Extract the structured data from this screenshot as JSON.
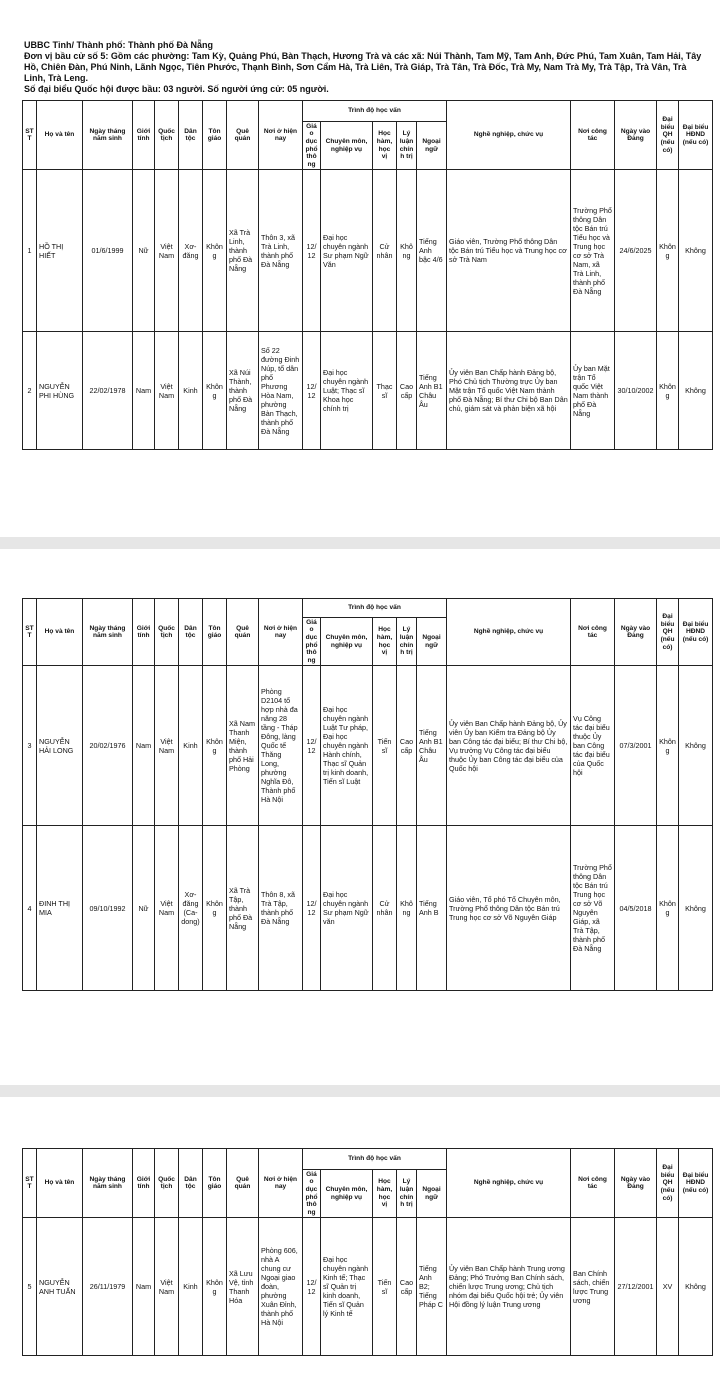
{
  "header": {
    "line1": "UBBC Tỉnh/ Thành phố: Thành phố Đà Nẵng",
    "line2": "Đơn vị bầu cử số 5: Gồm các phường: Tam Kỳ, Quảng Phú, Bàn Thạch, Hương Trà và các xã: Núi Thành, Tam Mỹ, Tam Anh, Đức Phú, Tam Xuân, Tam Hải, Tây Hồ, Chiên Đàn, Phú Ninh, Lãnh Ngọc, Tiên Phước, Thạnh Bình, Sơn Cẩm Hà, Trà Liên, Trà Giáp, Trà Tân, Trà Đốc, Trà My, Nam Trà My, Trà Tập, Trà Vân, Trà Linh, Trà Leng.",
    "line3": "Số đại biểu Quốc hội được bầu: 03 người. Số người ứng cử: 05 người."
  },
  "education_group": "Trình độ học vấn",
  "columns": [
    "STT",
    "Họ và tên",
    "Ngày tháng năm sinh",
    "Giới tính",
    "Quốc tịch",
    "Dân tộc",
    "Tôn giáo",
    "Quê quán",
    "Nơi ở hiện nay",
    "Giáo dục phổ thông",
    "Chuyên môn, nghiệp vụ",
    "Học hàm, học vị",
    "Lý luận chính trị",
    "Ngoại ngữ",
    "Nghề nghiệp, chức vụ",
    "Nơi công tác",
    "Ngày vào Đảng",
    "Đại biểu QH (nếu có)",
    "Đại biểu HĐND (nếu có)"
  ],
  "pages": [
    {
      "rows": [
        [
          "1",
          "HỒ THỊ HIẾT",
          "01/6/1999",
          "Nữ",
          "Việt Nam",
          "Xơ-đăng",
          "Không",
          "Xã Trà Linh, thành phố Đà Nẵng",
          "Thôn 3, xã Trà Linh, thành phố Đà Nẵng",
          "12/12",
          "Đại học chuyên ngành Sư phạm Ngữ Văn",
          "Cử nhân",
          "Không",
          "Tiếng Anh bậc 4/6",
          "Giáo viên, Trường Phổ thông Dân tộc Bán trú Tiểu học và Trung học cơ sở Trà Nam",
          "Trường Phổ thông Dân tộc Bán trú Tiểu học và Trung học cơ sở Trà Nam, xã Trà Linh, thành phố Đà Nẵng",
          "24/6/2025",
          "Không",
          "Không"
        ],
        [
          "2",
          "NGUYỄN PHI HÙNG",
          "22/02/1978",
          "Nam",
          "Việt Nam",
          "Kinh",
          "Không",
          "Xã Núi Thành, thành phố Đà Nẵng",
          "Số 22 đường Đinh Núp, tổ dân phố Phương Hòa Nam, phường Bàn Thạch, thành phố Đà Nẵng",
          "12/12",
          "Đại học chuyên ngành Luật; Thạc sĩ Khoa học chính trị",
          "Thạc sĩ",
          "Cao cấp",
          "Tiếng Anh B1 Châu Âu",
          "Ủy viên Ban Chấp hành Đảng bộ, Phó Chủ tịch Thường trực Ủy ban Mặt trận Tổ quốc Việt Nam thành phố Đà Nẵng; Bí thư Chi bộ Ban Dân chủ, giám sát và phản biện xã hội",
          "Ủy ban Mặt trận Tổ quốc Việt Nam thành phố Đà Nẵng",
          "30/10/2002",
          "Không",
          "Không"
        ]
      ]
    },
    {
      "rows": [
        [
          "3",
          "NGUYỄN HẢI LONG",
          "20/02/1976",
          "Nam",
          "Việt Nam",
          "Kinh",
          "Không",
          "Xã Nam Thanh Miện, thành phố Hải Phòng",
          "Phòng D2104 tổ hợp nhà đa năng 28 tầng - Tháp Đông, làng Quốc tế Thăng Long, phường Nghĩa Đô, Thành phố Hà Nội",
          "12/12",
          "Đại học chuyên ngành Luật Tư pháp, Đại học chuyên ngành Hành chính, Thạc sĩ Quản trị kinh doanh, Tiến sĩ Luật",
          "Tiến sĩ",
          "Cao cấp",
          "Tiếng Anh B1 Châu Âu",
          "Ủy viên Ban Chấp hành Đảng bộ, Ủy viên Ủy ban Kiểm tra Đảng bộ Ủy ban Công tác đại biểu; Bí thư Chi bộ, Vụ trưởng Vụ Công tác đại biểu thuộc Ủy ban Công tác đại biểu của Quốc hội",
          "Vụ Công tác đại biểu thuộc Ủy ban Công tác đại biểu của Quốc hội",
          "07/3/2001",
          "Không",
          "Không"
        ],
        [
          "4",
          "ĐINH THỊ MIA",
          "09/10/1992",
          "Nữ",
          "Việt Nam",
          "Xơ-đăng (Ca-dong)",
          "Không",
          "Xã Trà Tập, thành phố Đà Nẵng",
          "Thôn 8, xã Trà Tập, thành phố Đà Nẵng",
          "12/12",
          "Đại học chuyên ngành Sư phạm Ngữ văn",
          "Cử nhân",
          "Không",
          "Tiếng Anh B",
          "Giáo viên, Tổ phó Tổ Chuyên môn, Trường Phổ thông Dân tộc Bán trú Trung học cơ sở Võ Nguyên Giáp",
          "Trường Phổ thông Dân tộc Bán trú Trung học cơ sở Võ Nguyên Giáp, xã Trà Tập, thành phố Đà Nẵng",
          "04/5/2018",
          "Không",
          "Không"
        ]
      ]
    },
    {
      "rows": [
        [
          "5",
          "NGUYỄN ANH TUẤN",
          "26/11/1979",
          "Nam",
          "Việt Nam",
          "Kinh",
          "Không",
          "Xã Lưu Vệ, tỉnh Thanh Hóa",
          "Phòng 606, nhà A chung cư Ngoại giao đoàn, phường Xuân Đỉnh, thành phố Hà Nội",
          "12/12",
          "Đại học chuyên ngành Kinh tế; Thạc sĩ Quản trị kinh doanh, Tiến sĩ Quản lý Kinh tế",
          "Tiến sĩ",
          "Cao cấp",
          "Tiếng Anh B2; Tiếng Pháp C",
          "Ủy viên Ban Chấp hành Trung ương Đảng; Phó Trưởng Ban Chính sách, chiến lược Trung ương; Chủ tịch nhóm đại biểu Quốc hội trẻ; Ủy viên Hội đồng lý luận Trung ương",
          "Ban Chính sách, chiến lược Trung ương",
          "27/12/2001",
          "XV",
          "Không"
        ]
      ]
    }
  ]
}
